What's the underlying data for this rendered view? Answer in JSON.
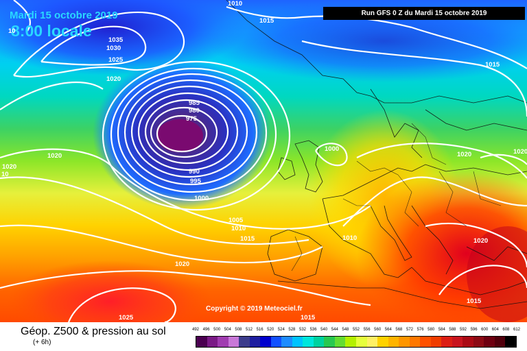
{
  "header": {
    "date": "Mardi 15 octobre 2019",
    "local_time": "8:00 locale",
    "run_info": "Run GFS 0 Z du Mardi 15 octobre 2019"
  },
  "copyright": "Copyright © 2019 Meteociel.fr",
  "isobar_labels": [
    "1010",
    "1015",
    "1035",
    "1030",
    "1025",
    "1020",
    "985",
    "980",
    "975",
    "1020",
    "1000",
    "1020",
    "990",
    "995",
    "1000",
    "1005",
    "1010",
    "1015",
    "1010",
    "1015",
    "1020",
    "1020",
    "1020",
    "1025",
    "1015",
    "1015",
    "1020",
    "10",
    "10"
  ],
  "footer": {
    "title": "Géop. Z500 & pression au sol",
    "subtitle": "(+ 6h)"
  },
  "legend": {
    "ticks": [
      "492",
      "496",
      "500",
      "504",
      "508",
      "512",
      "516",
      "520",
      "524",
      "528",
      "532",
      "536",
      "540",
      "544",
      "548",
      "552",
      "556",
      "560",
      "564",
      "568",
      "572",
      "576",
      "580",
      "584",
      "588",
      "592",
      "596",
      "600",
      "604",
      "608",
      "612"
    ],
    "colors": [
      "#4a0050",
      "#7a1a86",
      "#a03cb0",
      "#c878d8",
      "#3c3c8c",
      "#1e1ea0",
      "#0000cd",
      "#1250ff",
      "#1e8cff",
      "#00c3ff",
      "#00e6dc",
      "#00d2a0",
      "#28c850",
      "#64dc32",
      "#b4f000",
      "#e6ff3c",
      "#fff064",
      "#ffd200",
      "#ffb400",
      "#ff9600",
      "#ff7800",
      "#ff5000",
      "#f03c00",
      "#dc1e14",
      "#c8141e",
      "#aa0a14",
      "#8c0a14",
      "#6e0010",
      "#50000c",
      "#000000"
    ]
  }
}
